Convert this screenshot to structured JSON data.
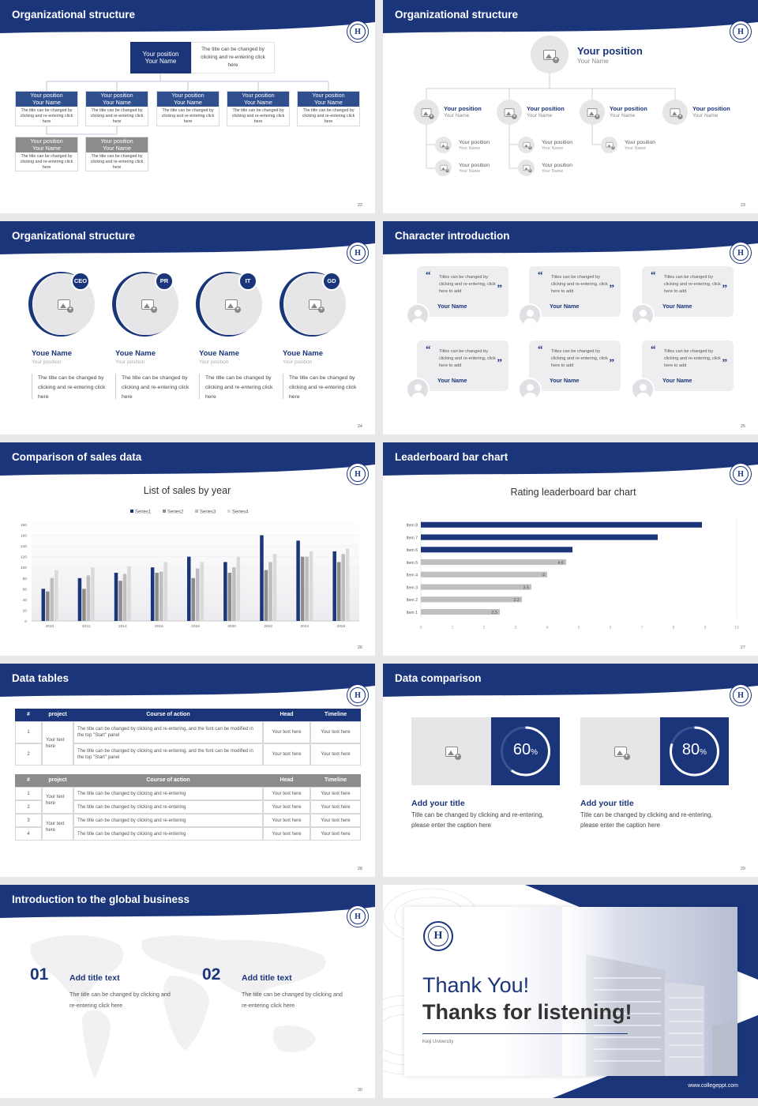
{
  "slides": {
    "s22": {
      "title": "Organizational structure",
      "page": "22",
      "top_box": {
        "pos": "Your position",
        "name": "Your Name"
      },
      "top_desc": "The title can be changed by clicking and re-entering click here",
      "row1": [
        {
          "pos": "Your position",
          "name": "Your Name",
          "desc": "The title can be changed by clicking and re-entering click here"
        },
        {
          "pos": "Your position",
          "name": "Your Name",
          "desc": "The title can be changed by clicking and re-entering click here"
        },
        {
          "pos": "Your position",
          "name": "Your Name",
          "desc": "The title can be changed by clicking and re-entering click here"
        },
        {
          "pos": "Your position",
          "name": "Your Name",
          "desc": "The title can be changed by clicking and re-entering click here"
        },
        {
          "pos": "Your position",
          "name": "Your Name",
          "desc": "The title can be changed by clicking and re-entering click here"
        }
      ],
      "row2": [
        {
          "pos": "Your position",
          "name": "Your Name",
          "desc": "The title can be changed by clicking and re-entering click here"
        },
        {
          "pos": "Your position",
          "name": "Your Name",
          "desc": "The title can be changed by clicking and re-entering click here"
        }
      ]
    },
    "s23": {
      "title": "Organizational structure",
      "page": "23",
      "top": {
        "pos": "Your position",
        "name": "Your Name"
      },
      "level2": [
        {
          "pos": "Your position",
          "name": "Your Name"
        },
        {
          "pos": "Your position",
          "name": "Your Name"
        },
        {
          "pos": "Your position",
          "name": "Your Name"
        },
        {
          "pos": "Your position",
          "name": "Your Name"
        }
      ],
      "level3": [
        {
          "pos": "Your position",
          "name": "Your Name"
        },
        {
          "pos": "Your position",
          "name": "Your Name"
        },
        {
          "pos": "Your position",
          "name": "Your Name"
        },
        {
          "pos": "Your position",
          "name": "Your Name"
        },
        {
          "pos": "Your position",
          "name": "Your Name"
        }
      ]
    },
    "s24": {
      "title": "Organizational structure",
      "page": "24",
      "people": [
        {
          "badge": "CEO",
          "name": "Youe Name",
          "pos": "Your position",
          "desc": "The title can be changed by clicking and re-entering click here"
        },
        {
          "badge": "PR",
          "name": "Youe Name",
          "pos": "Your position",
          "desc": "The title can be changed by clicking and re-entering click here"
        },
        {
          "badge": "IT",
          "name": "Youe Name",
          "pos": "Your position",
          "desc": "The title can be changed by clicking and re-entering click here"
        },
        {
          "badge": "GD",
          "name": "Youe Name",
          "pos": "Your position",
          "desc": "The title can be changed by clicking and re-entering click here"
        }
      ]
    },
    "s25": {
      "title": "Character introduction",
      "page": "25",
      "cards": [
        {
          "text": "Titles can be changed by clicking and re-entering, click here to add",
          "name": "Your Name"
        },
        {
          "text": "Titles can be changed by clicking and re-entering, click here to add",
          "name": "Your Name"
        },
        {
          "text": "Titles can be changed by clicking and re-entering, click here to add",
          "name": "Your Name"
        },
        {
          "text": "Titles can be changed by clicking and re-entering, click here to add",
          "name": "Your Name"
        },
        {
          "text": "Titles can be changed by clicking and re-entering, click here to add",
          "name": "Your Name"
        },
        {
          "text": "Titles can be changed by clicking and re-entering, click here to add",
          "name": "Your Name"
        }
      ]
    },
    "s26": {
      "title": "Comparison of sales data",
      "page": "26"
    },
    "s27": {
      "title": "Leaderboard bar chart",
      "page": "27"
    },
    "s28": {
      "title": "Data tables",
      "page": "28",
      "t1_headers": [
        "#",
        "project",
        "Course of action",
        "Head",
        "Timeline"
      ],
      "t1_rows": [
        {
          "n": "1",
          "action": "The title can be changed by clicking and re-entering, and the font can be modified in the top \"Start\" panel",
          "head": "Your text here",
          "time": "Your text here"
        },
        {
          "n": "2",
          "action": "The title can be changed by clicking and re-entering, and the font can be modified in the top \"Start\" panel",
          "head": "Your text here",
          "time": "Your text here"
        }
      ],
      "t1_project": "Your text here",
      "t2_headers": [
        "#",
        "project",
        "Course of action",
        "Head",
        "Timeline"
      ],
      "t2_rows": [
        {
          "n": "1",
          "action": "The title can be changed by clicking and re-entering",
          "head": "Your text here",
          "time": "Your text here"
        },
        {
          "n": "2",
          "action": "The title can be changed by clicking and re-entering",
          "head": "Your text here",
          "time": "Your text here"
        },
        {
          "n": "3",
          "action": "The title can be changed by clicking and re-entering",
          "head": "Your text here",
          "time": "Your text here"
        },
        {
          "n": "4",
          "action": "The title can be changed by clicking and re-entering",
          "head": "Your text here",
          "time": "Your text here"
        }
      ],
      "t2_project_a": "Your text here",
      "t2_project_b": "Your text here"
    },
    "s29": {
      "title": "Data comparison",
      "page": "29",
      "items": [
        {
          "pct": "60",
          "unit": "%",
          "value": 60,
          "title": "Add your title",
          "desc": "Title can be changed by clicking and re-entering, please enter the caption here"
        },
        {
          "pct": "80",
          "unit": "%",
          "value": 80,
          "title": "Add your title",
          "desc": "Title can be changed by clicking and re-entering, please enter the caption here"
        }
      ]
    },
    "s30": {
      "title": "Introduction to the global business",
      "page": "30",
      "items": [
        {
          "num": "01",
          "title": "Add title text",
          "desc": "The title can be changed by clicking and re-entering click here"
        },
        {
          "num": "02",
          "title": "Add title text",
          "desc": "The title can be changed by clicking and re-entering click here"
        }
      ]
    },
    "s31": {
      "line1": "Thank You!",
      "line2": "Thanks for listening!",
      "university": "Keiji University",
      "url": "www.collegeppt.com"
    }
  },
  "chart_data": [
    {
      "type": "bar",
      "title": "List of sales by year",
      "categories": [
        "2010",
        "2012",
        "2014",
        "2016",
        "2018",
        "2020",
        "2022",
        "2024",
        "2026"
      ],
      "series": [
        {
          "name": "Series1",
          "values": [
            60,
            80,
            90,
            100,
            120,
            110,
            160,
            150,
            130
          ]
        },
        {
          "name": "Series2",
          "values": [
            55,
            60,
            75,
            90,
            80,
            90,
            95,
            120,
            110
          ]
        },
        {
          "name": "Series3",
          "values": [
            80,
            85,
            88,
            92,
            98,
            100,
            110,
            120,
            125
          ]
        },
        {
          "name": "Series4",
          "values": [
            95,
            100,
            102,
            110,
            110,
            120,
            125,
            130,
            135
          ]
        }
      ],
      "ylim": [
        0,
        180
      ],
      "yticks": [
        0,
        20,
        40,
        60,
        80,
        100,
        120,
        140,
        160,
        180
      ],
      "colors": [
        "#1b357a",
        "#8c8c8c",
        "#bdbdbd",
        "#dadada"
      ],
      "legend": "top"
    },
    {
      "type": "bar",
      "orientation": "horizontal",
      "title": "Rating leaderboard bar chart",
      "categories": [
        "Item 1",
        "Item 2",
        "Item 3",
        "Item 4",
        "Item 5",
        "Item 6",
        "Item 7",
        "Item 8"
      ],
      "values": [
        2.5,
        3.2,
        3.5,
        4,
        4.6,
        4.8,
        7.5,
        8.9
      ],
      "labels": [
        "2.5",
        "3.2",
        "3.5",
        "4",
        "4.6",
        "",
        "",
        ""
      ],
      "xlim": [
        0,
        10
      ],
      "xticks": [
        0,
        1,
        2,
        3,
        4,
        5,
        6,
        7,
        8,
        9,
        10
      ],
      "colors": {
        "top": "#1b357a",
        "rest": "#bfbfbf"
      }
    }
  ],
  "colors": {
    "navy": "#1b357a",
    "grey": "#8c8c8c",
    "light": "#e6e5e8"
  }
}
